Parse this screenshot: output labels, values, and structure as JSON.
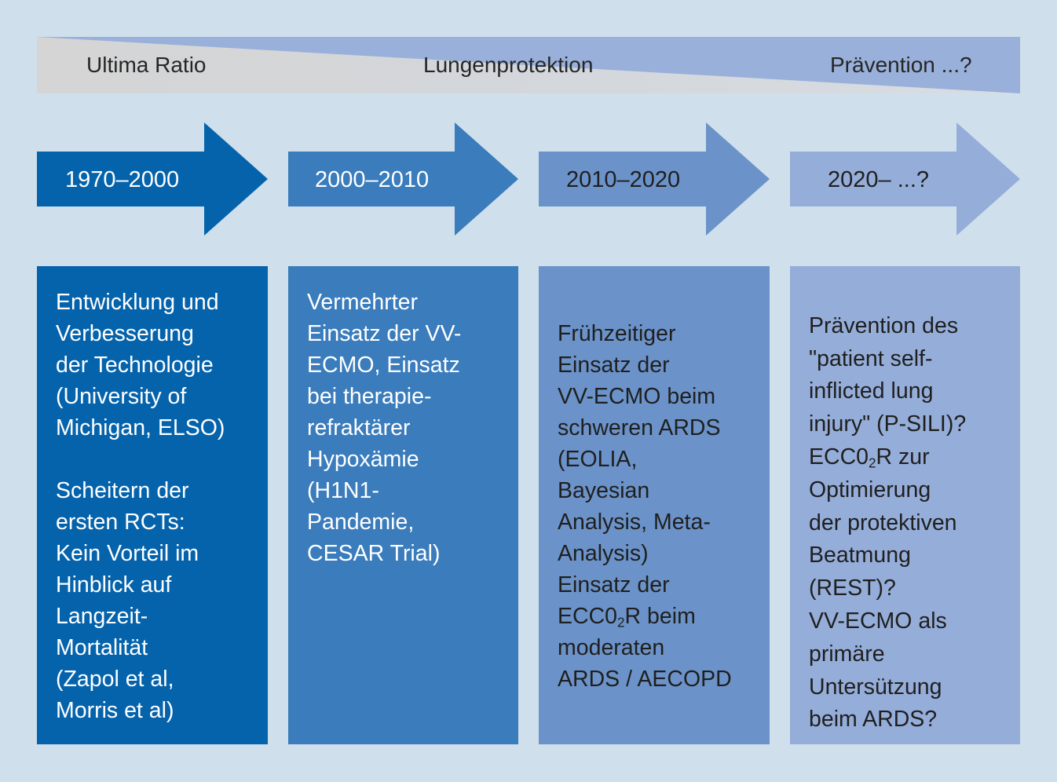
{
  "phases": {
    "labels": [
      "Ultima Ratio",
      "Lungenprotektion",
      "Prävention ...?"
    ]
  },
  "periods": [
    {
      "label": "1970–2000",
      "color": "#0563ac"
    },
    {
      "label": "2000–2010",
      "color": "#3a7cbc"
    },
    {
      "label": "2010–2020",
      "color": "#6b93c9"
    },
    {
      "label": "2020– ...?",
      "color": "#95add9"
    }
  ],
  "columns": [
    {
      "color": "#0563ac",
      "block1": "Entwicklung und\nVerbesserung\nder Technologie\n(University of\nMichigan, ELSO)",
      "block2": "Scheitern der\nersten RCTs:\nKein Vorteil im\nHinblick auf\nLangzeit-\nMortalität\n(Zapol et al,\nMorris et al)"
    },
    {
      "color": "#3a7cbc",
      "block1": "Vermehrter\nEinsatz der VV-\nECMO, Einsatz\nbei therapie-\nrefraktärer\nHypoxämie\n(H1N1-\nPandemie,\nCESAR Trial)"
    },
    {
      "color": "#6b93c9",
      "block1": "Frühzeitiger\nEinsatz der\nVV-ECMO beim\nschweren ARDS\n(EOLIA,\nBayesian\nAnalysis, Meta-\nAnalysis)\nEinsatz der",
      "ecco_prefix": "ECC0",
      "ecco_sub": "2",
      "ecco_suffix": "R beim",
      "block2": "moderaten\nARDS / AECOPD"
    },
    {
      "color": "#95add9",
      "block1": "Prävention des\n\"patient self-\ninflicted lung\ninjury\" (P-SILI)?",
      "ecco_prefix": "ECC0",
      "ecco_sub": "2",
      "ecco_suffix": "R zur",
      "block2": "Optimierung\nder protektiven\nBeatmung\n(REST)?\nVV-ECMO als\nprimäre\nUntersützung\nbeim ARDS?"
    }
  ]
}
